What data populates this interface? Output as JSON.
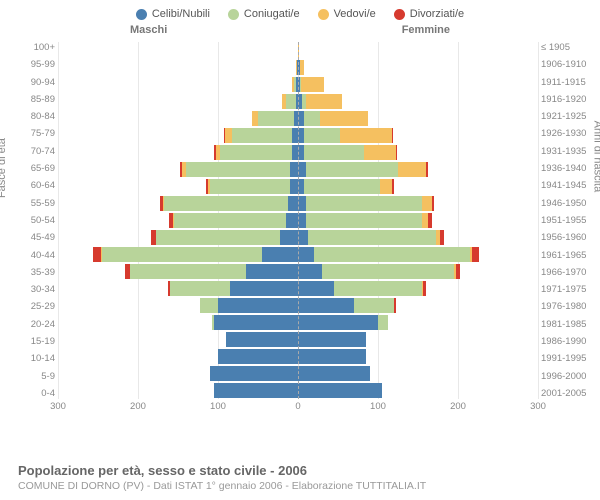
{
  "legend": [
    {
      "label": "Celibi/Nubili",
      "color": "#4a7fb0"
    },
    {
      "label": "Coniugati/e",
      "color": "#b8d49a"
    },
    {
      "label": "Vedovi/e",
      "color": "#f5c060"
    },
    {
      "label": "Divorziati/e",
      "color": "#d63a2e"
    }
  ],
  "gender_labels": {
    "male": "Maschi",
    "female": "Femmine"
  },
  "y_title_left": "Fasce di età",
  "y_title_right": "Anni di nascita",
  "age_groups": [
    "100+",
    "95-99",
    "90-94",
    "85-89",
    "80-84",
    "75-79",
    "70-74",
    "65-69",
    "60-64",
    "55-59",
    "50-54",
    "45-49",
    "40-44",
    "35-39",
    "30-34",
    "25-29",
    "20-24",
    "15-19",
    "10-14",
    "5-9",
    "0-4"
  ],
  "birth_years": [
    "≤ 1905",
    "1906-1910",
    "1911-1915",
    "1916-1920",
    "1921-1925",
    "1926-1930",
    "1931-1935",
    "1936-1940",
    "1941-1945",
    "1946-1950",
    "1951-1955",
    "1956-1960",
    "1961-1965",
    "1966-1970",
    "1971-1975",
    "1976-1980",
    "1981-1985",
    "1986-1990",
    "1991-1995",
    "1996-2000",
    "2001-2005"
  ],
  "x_ticks": [
    300,
    200,
    100,
    0,
    100,
    200,
    300
  ],
  "x_max": 300,
  "colors": {
    "single": "#4a7fb0",
    "married": "#b8d49a",
    "widowed": "#f5c060",
    "divorced": "#d63a2e"
  },
  "background_color": "#ffffff",
  "grid_color": "#e8e8e8",
  "center_line_color": "#aaaaaa",
  "label_fontsize": 10,
  "title": "Popolazione per età, sesso e stato civile - 2006",
  "subtitle": "COMUNE DI DORNO (PV) - Dati ISTAT 1° gennaio 2006 - Elaborazione TUTTITALIA.IT",
  "data": [
    {
      "m": {
        "single": 0,
        "married": 0,
        "widowed": 0,
        "divorced": 0
      },
      "f": {
        "single": 0,
        "married": 0,
        "widowed": 1,
        "divorced": 0
      }
    },
    {
      "m": {
        "single": 1,
        "married": 0,
        "widowed": 1,
        "divorced": 0
      },
      "f": {
        "single": 2,
        "married": 0,
        "widowed": 5,
        "divorced": 0
      }
    },
    {
      "m": {
        "single": 3,
        "married": 2,
        "widowed": 2,
        "divorced": 0
      },
      "f": {
        "single": 3,
        "married": 1,
        "widowed": 28,
        "divorced": 0
      }
    },
    {
      "m": {
        "single": 3,
        "married": 12,
        "widowed": 5,
        "divorced": 0
      },
      "f": {
        "single": 5,
        "married": 5,
        "widowed": 45,
        "divorced": 0
      }
    },
    {
      "m": {
        "single": 5,
        "married": 45,
        "widowed": 8,
        "divorced": 0
      },
      "f": {
        "single": 8,
        "married": 20,
        "widowed": 60,
        "divorced": 0
      }
    },
    {
      "m": {
        "single": 8,
        "married": 75,
        "widowed": 8,
        "divorced": 2
      },
      "f": {
        "single": 8,
        "married": 45,
        "widowed": 65,
        "divorced": 1
      }
    },
    {
      "m": {
        "single": 8,
        "married": 90,
        "widowed": 5,
        "divorced": 2
      },
      "f": {
        "single": 8,
        "married": 75,
        "widowed": 40,
        "divorced": 1
      }
    },
    {
      "m": {
        "single": 10,
        "married": 130,
        "widowed": 5,
        "divorced": 3
      },
      "f": {
        "single": 10,
        "married": 115,
        "widowed": 35,
        "divorced": 2
      }
    },
    {
      "m": {
        "single": 10,
        "married": 100,
        "widowed": 2,
        "divorced": 3
      },
      "f": {
        "single": 8,
        "married": 95,
        "widowed": 15,
        "divorced": 2
      }
    },
    {
      "m": {
        "single": 12,
        "married": 155,
        "widowed": 2,
        "divorced": 4
      },
      "f": {
        "single": 10,
        "married": 145,
        "widowed": 12,
        "divorced": 3
      }
    },
    {
      "m": {
        "single": 15,
        "married": 140,
        "widowed": 1,
        "divorced": 5
      },
      "f": {
        "single": 10,
        "married": 145,
        "widowed": 8,
        "divorced": 4
      }
    },
    {
      "m": {
        "single": 22,
        "married": 155,
        "widowed": 1,
        "divorced": 6
      },
      "f": {
        "single": 12,
        "married": 160,
        "widowed": 5,
        "divorced": 5
      }
    },
    {
      "m": {
        "single": 45,
        "married": 200,
        "widowed": 1,
        "divorced": 10
      },
      "f": {
        "single": 20,
        "married": 195,
        "widowed": 3,
        "divorced": 8
      }
    },
    {
      "m": {
        "single": 65,
        "married": 145,
        "widowed": 0,
        "divorced": 6
      },
      "f": {
        "single": 30,
        "married": 165,
        "widowed": 2,
        "divorced": 6
      }
    },
    {
      "m": {
        "single": 85,
        "married": 75,
        "widowed": 0,
        "divorced": 3
      },
      "f": {
        "single": 45,
        "married": 110,
        "widowed": 1,
        "divorced": 4
      }
    },
    {
      "m": {
        "single": 100,
        "married": 22,
        "widowed": 0,
        "divorced": 1
      },
      "f": {
        "single": 70,
        "married": 50,
        "widowed": 0,
        "divorced": 2
      }
    },
    {
      "m": {
        "single": 105,
        "married": 3,
        "widowed": 0,
        "divorced": 0
      },
      "f": {
        "single": 100,
        "married": 12,
        "widowed": 0,
        "divorced": 0
      }
    },
    {
      "m": {
        "single": 90,
        "married": 0,
        "widowed": 0,
        "divorced": 0
      },
      "f": {
        "single": 85,
        "married": 0,
        "widowed": 0,
        "divorced": 0
      }
    },
    {
      "m": {
        "single": 100,
        "married": 0,
        "widowed": 0,
        "divorced": 0
      },
      "f": {
        "single": 85,
        "married": 0,
        "widowed": 0,
        "divorced": 0
      }
    },
    {
      "m": {
        "single": 110,
        "married": 0,
        "widowed": 0,
        "divorced": 0
      },
      "f": {
        "single": 90,
        "married": 0,
        "widowed": 0,
        "divorced": 0
      }
    },
    {
      "m": {
        "single": 105,
        "married": 0,
        "widowed": 0,
        "divorced": 0
      },
      "f": {
        "single": 105,
        "married": 0,
        "widowed": 0,
        "divorced": 0
      }
    }
  ]
}
